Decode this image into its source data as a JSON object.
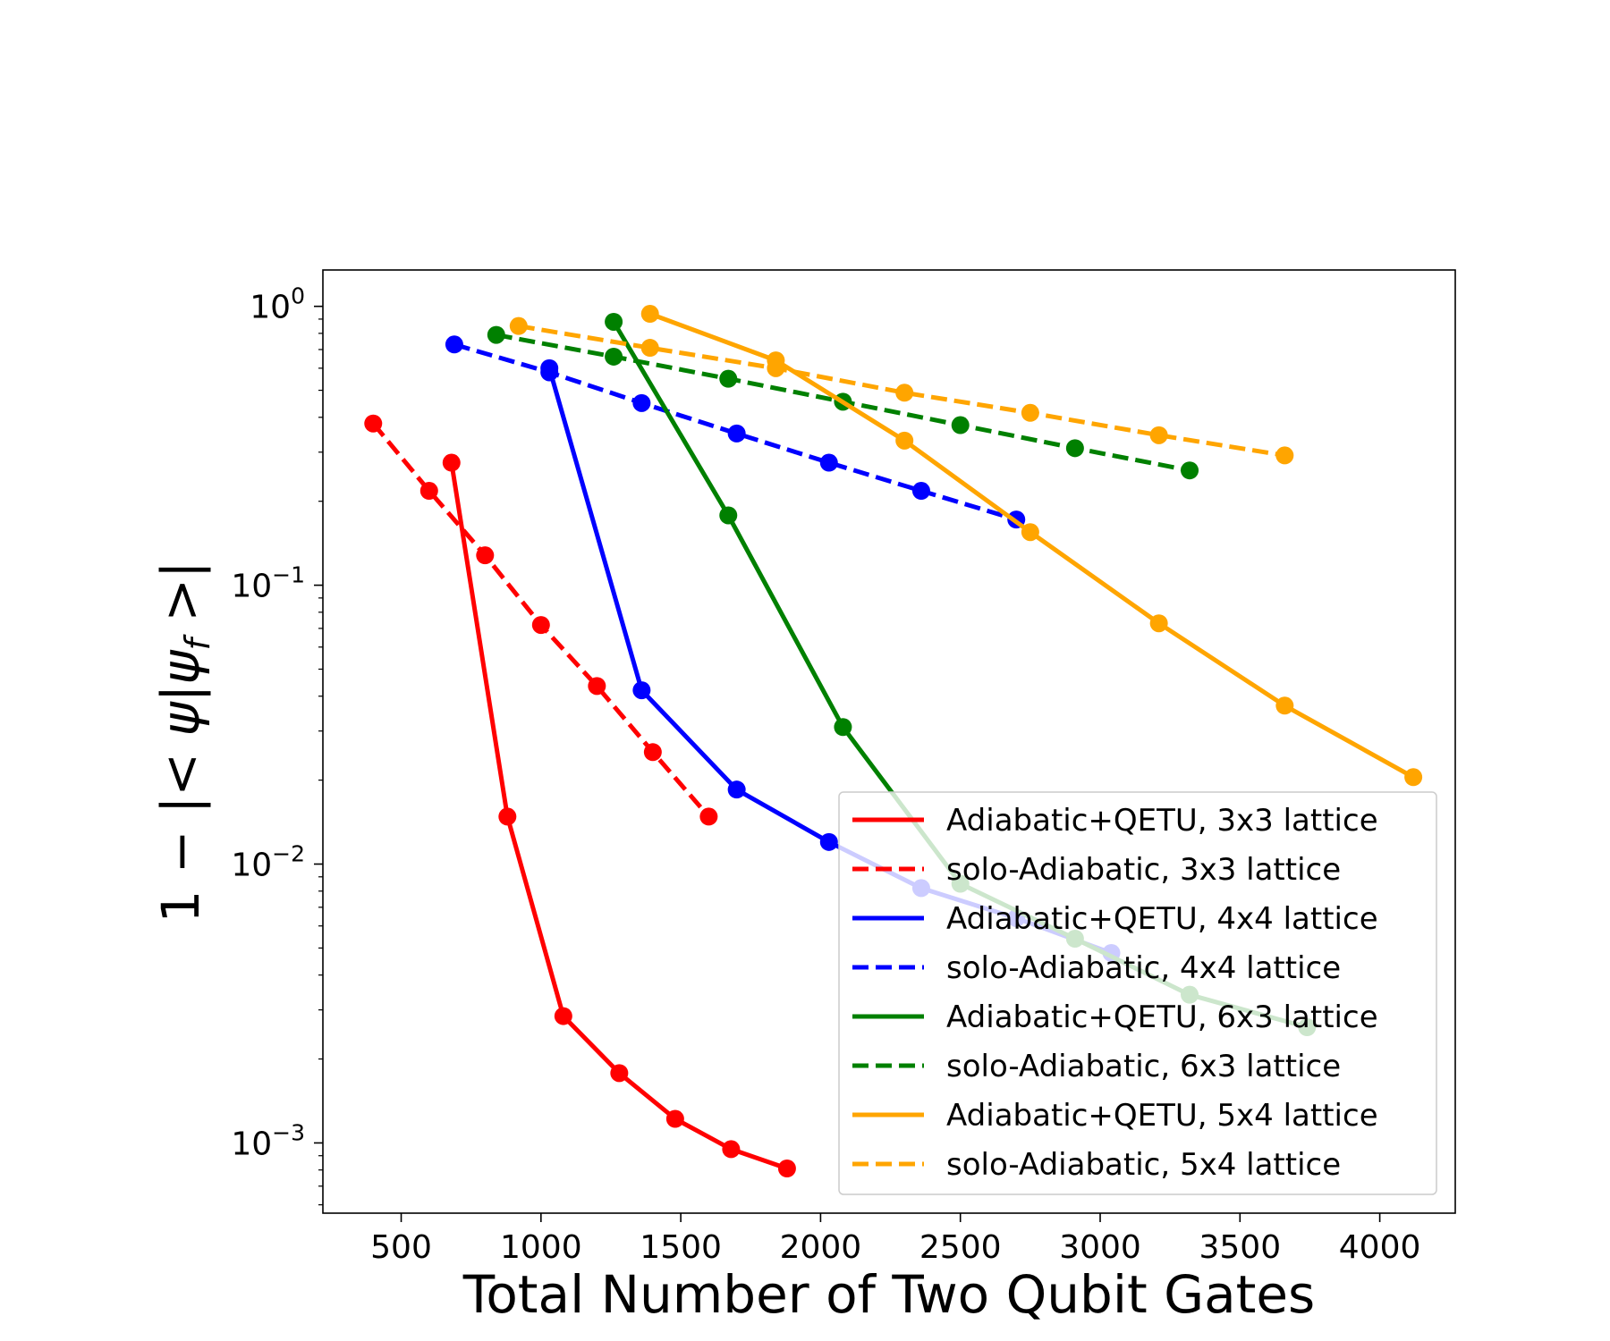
{
  "chart_data": {
    "type": "line",
    "xlabel": "Total Number of Two Qubit Gates",
    "ylabel": "1 − |< ψ|ψ_f >|",
    "ylabel_parts": {
      "prefix": "1 − |< ",
      "psi": "ψ",
      "bar": "|",
      "psi_f": "ψ",
      "sub": "f",
      "suffix": " >|"
    },
    "xlim": [
      220,
      4270
    ],
    "ylim": [
      0.00056,
      1.35
    ],
    "yscale": "log",
    "xticks": [
      500,
      1000,
      1500,
      2000,
      2500,
      3000,
      3500,
      4000
    ],
    "yticks": [
      {
        "value": 1,
        "base": "10",
        "exp": "0"
      },
      {
        "value": 0.1,
        "base": "10",
        "exp": "−1"
      },
      {
        "value": 0.01,
        "base": "10",
        "exp": "−2"
      },
      {
        "value": 0.001,
        "base": "10",
        "exp": "−3"
      }
    ],
    "grid": false,
    "legend_position": "lower-right",
    "series": [
      {
        "name": "Adiabatic+QETU, 3x3 lattice",
        "color": "#ff0000",
        "dash": "solid",
        "x": [
          680,
          880,
          1080,
          1280,
          1480,
          1680,
          1880
        ],
        "y": [
          0.275,
          0.0148,
          0.00285,
          0.00178,
          0.00122,
          0.00095,
          0.00081
        ]
      },
      {
        "name": "solo-Adiabatic, 3x3 lattice",
        "color": "#ff0000",
        "dash": "dashed",
        "x": [
          400,
          600,
          800,
          1000,
          1200,
          1400,
          1600
        ],
        "y": [
          0.38,
          0.218,
          0.128,
          0.072,
          0.0435,
          0.0252,
          0.0148
        ]
      },
      {
        "name": "Adiabatic+QETU, 4x4 lattice",
        "color": "#0000ff",
        "dash": "solid",
        "x": [
          1030,
          1360,
          1700,
          2030,
          2360,
          2700,
          3040
        ],
        "y": [
          0.6,
          0.042,
          0.0185,
          0.012,
          0.0082,
          0.0064,
          0.0048
        ]
      },
      {
        "name": "solo-Adiabatic, 4x4 lattice",
        "color": "#0000ff",
        "dash": "dashed",
        "x": [
          690,
          1030,
          1360,
          1700,
          2030,
          2360,
          2700
        ],
        "y": [
          0.73,
          0.58,
          0.45,
          0.35,
          0.275,
          0.218,
          0.172
        ]
      },
      {
        "name": "Adiabatic+QETU, 6x3 lattice",
        "color": "#008000",
        "dash": "solid",
        "x": [
          1260,
          1670,
          2080,
          2500,
          2910,
          3320,
          3740
        ],
        "y": [
          0.88,
          0.178,
          0.031,
          0.0085,
          0.0054,
          0.0034,
          0.0026
        ]
      },
      {
        "name": "solo-Adiabatic, 6x3 lattice",
        "color": "#008000",
        "dash": "dashed",
        "x": [
          840,
          1260,
          1670,
          2080,
          2500,
          2910,
          3320
        ],
        "y": [
          0.79,
          0.66,
          0.55,
          0.455,
          0.375,
          0.31,
          0.258
        ]
      },
      {
        "name": "Adiabatic+QETU, 5x4 lattice",
        "color": "#ffa500",
        "dash": "solid",
        "x": [
          1390,
          1840,
          2300,
          2750,
          3210,
          3660,
          4120
        ],
        "y": [
          0.94,
          0.64,
          0.33,
          0.155,
          0.073,
          0.037,
          0.0205
        ]
      },
      {
        "name": "solo-Adiabatic, 5x4 lattice",
        "color": "#ffa500",
        "dash": "dashed",
        "x": [
          920,
          1390,
          1840,
          2300,
          2750,
          3210,
          3660
        ],
        "y": [
          0.85,
          0.71,
          0.6,
          0.49,
          0.415,
          0.345,
          0.292
        ]
      }
    ]
  }
}
